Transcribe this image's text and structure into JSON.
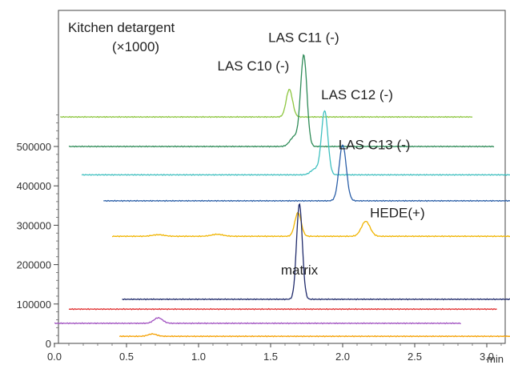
{
  "chart_data": {
    "type": "line",
    "title": "Kitchen detargent",
    "subtitle": "(×1000)",
    "xlabel": "min",
    "ylabel": "",
    "xlim": [
      0.0,
      3.45
    ],
    "ylim": [
      0,
      605000
    ],
    "x_ticks": [
      0.0,
      0.5,
      1.0,
      1.5,
      2.0,
      2.5,
      3.0
    ],
    "x_tick_labels": [
      "0.0",
      "0.5",
      "1.0",
      "1.5",
      "2.0",
      "2.5",
      "3.0"
    ],
    "y_ticks": [
      0,
      100000,
      200000,
      300000,
      400000,
      500000
    ],
    "y_tick_labels": [
      "0",
      "100000",
      "200000",
      "300000",
      "400000",
      "500000"
    ],
    "grid": false,
    "series": [
      {
        "color": "#8dc63f",
        "baseline": 575000,
        "x_range": [
          0.04,
          2.9
        ],
        "peaks": [
          {
            "x": 1.63,
            "height": 70000,
            "width": 0.022
          }
        ]
      },
      {
        "color": "#2e8b57",
        "baseline": 500000,
        "x_range": [
          0.1,
          3.05
        ],
        "peaks": [
          {
            "x": 1.73,
            "height": 230000,
            "width": 0.022
          },
          {
            "x": 1.665,
            "height": 25000,
            "width": 0.03
          }
        ]
      },
      {
        "color": "#40c0c0",
        "baseline": 428000,
        "x_range": [
          0.19,
          3.18
        ],
        "peaks": [
          {
            "x": 1.875,
            "height": 162000,
            "width": 0.022
          },
          {
            "x": 1.81,
            "height": 15000,
            "width": 0.03
          }
        ]
      },
      {
        "color": "#2b5fa8",
        "baseline": 362000,
        "x_range": [
          0.34,
          3.32
        ],
        "peaks": [
          {
            "x": 2.0,
            "height": 142000,
            "width": 0.025
          }
        ]
      },
      {
        "color": "#f0b400",
        "baseline": 272000,
        "x_range": [
          0.4,
          3.42
        ],
        "peaks": [
          {
            "x": 1.69,
            "height": 60000,
            "width": 0.022
          },
          {
            "x": 2.16,
            "height": 38000,
            "width": 0.03
          },
          {
            "x": 1.13,
            "height": 5000,
            "width": 0.04
          },
          {
            "x": 0.72,
            "height": 4000,
            "width": 0.04
          }
        ]
      },
      {
        "color": "#1f2a6b",
        "baseline": 112000,
        "x_range": [
          0.47,
          3.45
        ],
        "peaks": [
          {
            "x": 1.7,
            "height": 242000,
            "width": 0.02
          }
        ]
      },
      {
        "color": "#e03030",
        "baseline": 87000,
        "x_range": [
          0.1,
          3.07
        ],
        "peaks": []
      },
      {
        "color": "#a050c0",
        "baseline": 51000,
        "x_range": [
          0.0,
          2.82
        ],
        "peaks": [
          {
            "x": 0.72,
            "height": 14000,
            "width": 0.03
          }
        ]
      },
      {
        "color": "#f5a000",
        "baseline": 18000,
        "x_range": [
          0.45,
          3.42
        ],
        "peaks": [
          {
            "x": 0.68,
            "height": 6000,
            "width": 0.03
          }
        ]
      }
    ],
    "annotations": [
      {
        "text": "LAS C11 (-)",
        "x": 1.73,
        "y": 765000
      },
      {
        "text": "LAS C10 (-)",
        "x": 1.38,
        "y": 693000
      },
      {
        "text": "LAS C12 (-)",
        "x": 2.1,
        "y": 620000
      },
      {
        "text": "LAS C13 (-)",
        "x": 2.22,
        "y": 493000
      },
      {
        "text": "HEDE(+)",
        "x": 2.38,
        "y": 320000
      },
      {
        "text": "matrix",
        "x": 1.7,
        "y": 175000
      }
    ]
  }
}
